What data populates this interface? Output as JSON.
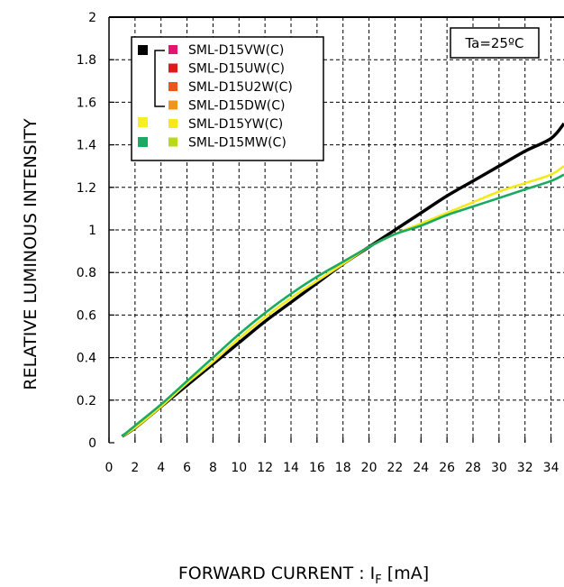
{
  "chart_data": {
    "type": "line",
    "title": "",
    "xlabel": "FORWARD CURRENT : I",
    "xlabel_sub": "F",
    "xlabel_unit": " [mA]",
    "ylabel": "RELATIVE LUMINOUS INTENSITY",
    "xlim": [
      0,
      35
    ],
    "ylim": [
      0,
      2
    ],
    "x_ticks": [
      "0",
      "2",
      "4",
      "6",
      "8",
      "10",
      "12",
      "14",
      "16",
      "18",
      "20",
      "22",
      "24",
      "26",
      "28",
      "30",
      "32",
      "34"
    ],
    "y_ticks": [
      "0",
      "0.2",
      "0.4",
      "0.6",
      "0.8",
      "1",
      "1.2",
      "1.4",
      "1.6",
      "1.8",
      "2"
    ],
    "grid": true,
    "annotation": "Ta=25ºC",
    "legend": {
      "position": "top-left",
      "entries": [
        {
          "label": "SML-D15VW(C)",
          "color": "#e0166e"
        },
        {
          "label": "SML-D15UW(C)",
          "color": "#e01a1a"
        },
        {
          "label": "SML-D15U2W(C)",
          "color": "#e8561a"
        },
        {
          "label": "SML-D15DW(C)",
          "color": "#f0961a"
        },
        {
          "label": "SML-D15YW(C)",
          "color": "#f7e81a"
        },
        {
          "label": "SML-D15MW(C)",
          "color": "#b8d81a"
        }
      ],
      "group_markers": [
        {
          "color": "#000000"
        },
        {
          "color": "#f7f020"
        },
        {
          "color": "#1aaa60"
        }
      ]
    },
    "series": [
      {
        "color": "#000000",
        "x": [
          1,
          2,
          4,
          6,
          8,
          10,
          12,
          14,
          16,
          18,
          20,
          22,
          24,
          26,
          28,
          30,
          32,
          34,
          35
        ],
        "y": [
          0.03,
          0.07,
          0.17,
          0.27,
          0.37,
          0.47,
          0.57,
          0.66,
          0.75,
          0.84,
          0.92,
          1.0,
          1.08,
          1.16,
          1.23,
          1.3,
          1.37,
          1.43,
          1.5
        ]
      },
      {
        "color": "#f2ea1a",
        "x": [
          1,
          2,
          4,
          6,
          8,
          10,
          12,
          14,
          16,
          18,
          20,
          22,
          24,
          26,
          28,
          30,
          32,
          34,
          35
        ],
        "y": [
          0.03,
          0.07,
          0.17,
          0.28,
          0.38,
          0.49,
          0.59,
          0.68,
          0.76,
          0.84,
          0.92,
          0.98,
          1.03,
          1.08,
          1.13,
          1.18,
          1.22,
          1.26,
          1.3
        ]
      },
      {
        "color": "#1aaa60",
        "x": [
          1,
          2,
          4,
          6,
          8,
          10,
          12,
          14,
          16,
          18,
          20,
          22,
          24,
          26,
          28,
          30,
          32,
          34,
          35
        ],
        "y": [
          0.03,
          0.08,
          0.18,
          0.29,
          0.4,
          0.51,
          0.61,
          0.7,
          0.78,
          0.85,
          0.92,
          0.98,
          1.02,
          1.07,
          1.11,
          1.15,
          1.19,
          1.23,
          1.26
        ]
      }
    ]
  }
}
